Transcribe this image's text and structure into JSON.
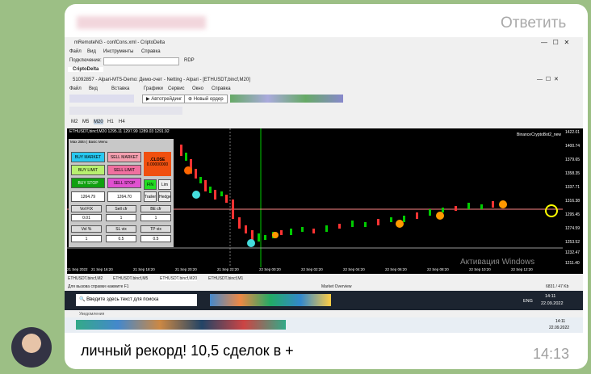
{
  "message": {
    "reply": "Ответить",
    "text": "личный рекорд! 10,5 сделок в +",
    "time": "14:13"
  },
  "screenshot": {
    "remote_title": "mRemoteNG - confCons.xml - CriptoDelta",
    "remote_menu": [
      "Файл",
      "Вид",
      "Инструменты",
      "Справка"
    ],
    "connect_label": "Подключение:",
    "rdp": "RDP",
    "tab": "CriptoDelta",
    "mt5_title": "51092857 - Alpari-MT5-Demo: Демо-счет - Netting - Alpari - [ETHUSDT,bincf,M20]",
    "mt5_menu": [
      "Файл",
      "Вид",
      "Вставка",
      "Графики",
      "Сервис",
      "Окно",
      "Справка"
    ],
    "autotrade": "Автотрейдинг",
    "new_order": "Новый ордер",
    "timeframes": [
      "M2",
      "M5",
      "M20",
      "H1",
      "H4"
    ],
    "chart_header": "ETHUSDT,bincf,M20  1295.11 1297.99 1289.03 1291.92",
    "expert": "BinanceCryptoBot2_new",
    "prices": [
      "1422.01",
      "1400.74",
      "1379.65",
      "1358.35",
      "1337.71",
      "1316.38",
      "1295.45",
      "1274.59",
      "1253.52",
      "1232.47",
      "1211.40"
    ],
    "times": [
      "21 Sep 2022",
      "21 Sep 16:20",
      "21 Sep 18:20",
      "21 Sep 20:20",
      "21 Sep 22:20",
      "22 Sep 00:20",
      "22 Sep 02:20",
      "22 Sep 04:20",
      "22 Sep 06:20",
      "22 Sep 08:20",
      "22 Sep 10:20",
      "22 Sep 12:20"
    ],
    "panel": {
      "header": "Max 2Btn | Basic Menu",
      "buttons": [
        "BUY MARKET",
        "SELL MARKET",
        "BUY LIMIT",
        "SELL LIMIT",
        "BUY STOP",
        "SELL STOP"
      ],
      "close": ".CLOSE",
      "close_value": "0.00000000",
      "fin": "FIN",
      "lim": "Lim",
      "fields": [
        "1264.79",
        "1264.70",
        "Trailer",
        "Hedge"
      ],
      "labels": [
        "Vol FIX",
        "Sell cfr",
        "BE cfr",
        "Vol %",
        "SL vix",
        "TP vix"
      ],
      "inputs": [
        "0.01",
        "1",
        "1",
        "1",
        "0.5",
        "0.5"
      ]
    },
    "activation": "Активация Windows",
    "chart_tabs": [
      "ETHUSDT.bincf,M2",
      "ETHUSDT.bincf,M5",
      "ETHUSDT.bincf,M20",
      "ETHUSDT.bincf,M1"
    ],
    "status_help": "Для вызова справки нажмите F1",
    "status_market": "Market Overview",
    "status_traffic": "6831 / 47 Kb",
    "search": "Введите здесь текст для поиска",
    "lang": "ENG",
    "clock_time": "14:11",
    "clock_date": "22.09.2022",
    "notifications": "Уведомления"
  }
}
